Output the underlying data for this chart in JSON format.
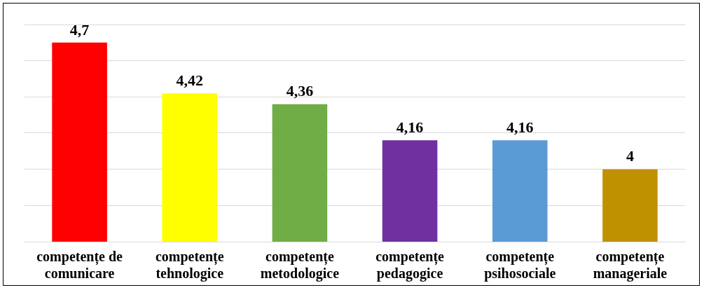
{
  "chart_data": {
    "type": "bar",
    "categories": [
      "competențe de comunicare",
      "competențe tehnologice",
      "competențe metodologice",
      "competențe pedagogice",
      "competențe psihosociale",
      "competențe manageriale"
    ],
    "values": [
      4.7,
      4.42,
      4.36,
      4.16,
      4.16,
      4
    ],
    "value_labels": [
      "4,7",
      "4,42",
      "4,36",
      "4,16",
      "4,16",
      "4"
    ],
    "colors": [
      "#ff0000",
      "#ffff00",
      "#70ad47",
      "#7030a0",
      "#5b9bd5",
      "#bf9000"
    ],
    "tick_labels": "x",
    "grid": "y"
  }
}
